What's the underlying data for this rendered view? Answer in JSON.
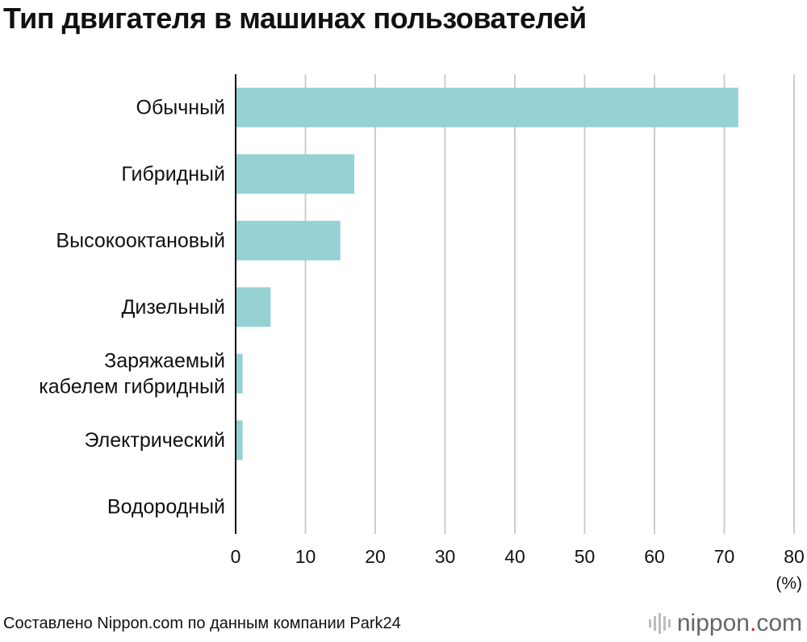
{
  "title": "Тип двигателя в машинах пользователей",
  "source": "Составлено Nippon.com по данным компании Park24",
  "unit_label": "(%)",
  "logo": {
    "pre": "nippon",
    "dot": ".",
    "post": "com"
  },
  "colors": {
    "bar": "#96d1d4",
    "grid": "#cccccc",
    "axis": "#111111",
    "text": "#111111"
  },
  "chart_data": {
    "type": "bar",
    "orientation": "horizontal",
    "categories": [
      [
        "Обычный"
      ],
      [
        "Гибридный"
      ],
      [
        "Высокооктановый"
      ],
      [
        "Дизельный"
      ],
      [
        "Заряжаемый",
        "кабелем гибридный"
      ],
      [
        "Электрический"
      ],
      [
        "Водородный"
      ]
    ],
    "values": [
      72,
      17,
      15,
      5,
      1,
      1,
      0
    ],
    "xlim": [
      0,
      80
    ],
    "xticks": [
      0,
      10,
      20,
      30,
      40,
      50,
      60,
      70,
      80
    ],
    "xlabel": "(%)",
    "grid": true
  }
}
